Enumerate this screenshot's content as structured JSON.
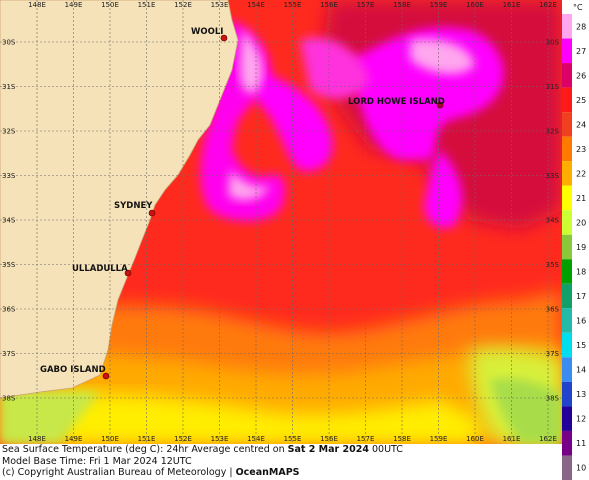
{
  "map": {
    "lon_labels": [
      "148E",
      "149E",
      "150E",
      "151E",
      "152E",
      "153E",
      "154E",
      "155E",
      "156E",
      "157E",
      "158E",
      "159E",
      "160E",
      "161E",
      "162E"
    ],
    "lat_labels": [
      "30S",
      "31S",
      "32S",
      "33S",
      "34S",
      "35S",
      "36S",
      "37S",
      "38S"
    ],
    "places": [
      {
        "name": "WOOLI"
      },
      {
        "name": "LORD HOWE ISLAND"
      },
      {
        "name": "SYDNEY"
      },
      {
        "name": "ULLADULLA"
      },
      {
        "name": "GABO ISLAND"
      }
    ]
  },
  "footer": {
    "line1_prefix": "Sea Surface Temperature (deg C): 24hr Average centred on ",
    "line1_bold": "Sat 2 Mar 2024",
    "line1_suffix": " 00UTC",
    "line2": "Model Base Time: Fri 1 Mar 2024 12UTC",
    "line3_prefix": "(c) Copyright Australian Bureau of Meteorology | ",
    "line3_bold": "OceanMAPS"
  },
  "legend": {
    "unit": "°C",
    "levels": [
      {
        "label": "28",
        "color": "#ffa6ee"
      },
      {
        "label": "27",
        "color": "#ff00ff"
      },
      {
        "label": "26",
        "color": "#dd0066"
      },
      {
        "label": "25",
        "color": "#ff1a1a"
      },
      {
        "label": "24",
        "color": "#f04020"
      },
      {
        "label": "23",
        "color": "#ff7a00"
      },
      {
        "label": "22",
        "color": "#ffae00"
      },
      {
        "label": "21",
        "color": "#ffff00"
      },
      {
        "label": "20",
        "color": "#ccff33"
      },
      {
        "label": "19",
        "color": "#88c83a"
      },
      {
        "label": "18",
        "color": "#00a000"
      },
      {
        "label": "17",
        "color": "#11a06a"
      },
      {
        "label": "16",
        "color": "#22bbaa"
      },
      {
        "label": "15",
        "color": "#00ddee"
      },
      {
        "label": "14",
        "color": "#3a8cf0"
      },
      {
        "label": "13",
        "color": "#2244cc"
      },
      {
        "label": "12",
        "color": "#220099"
      },
      {
        "label": "11",
        "color": "#770088"
      },
      {
        "label": "10",
        "color": "#886688"
      }
    ]
  }
}
